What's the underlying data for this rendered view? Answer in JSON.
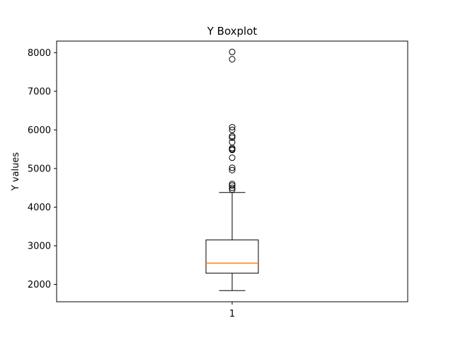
{
  "chart_data": {
    "type": "boxplot",
    "title": "Y Boxplot",
    "xlabel": "",
    "ylabel": "Y values",
    "categories": [
      "1"
    ],
    "ylim": [
      1550,
      8300
    ],
    "yticks": [
      2000,
      3000,
      4000,
      5000,
      6000,
      7000,
      8000
    ],
    "ytick_labels": [
      "2000",
      "3000",
      "4000",
      "5000",
      "6000",
      "7000",
      "8000"
    ],
    "grid": false,
    "series": [
      {
        "whisker_low": 1840,
        "q1": 2290,
        "median": 2550,
        "q3": 3150,
        "whisker_high": 4380,
        "outliers": [
          4450,
          4500,
          4560,
          4600,
          4960,
          5020,
          5280,
          5480,
          5500,
          5530,
          5680,
          5800,
          5840,
          6000,
          6070,
          7830,
          8020
        ]
      }
    ],
    "colors": {
      "box": "#000000",
      "median": "#ff7f0e",
      "outlier": "#000000"
    }
  }
}
